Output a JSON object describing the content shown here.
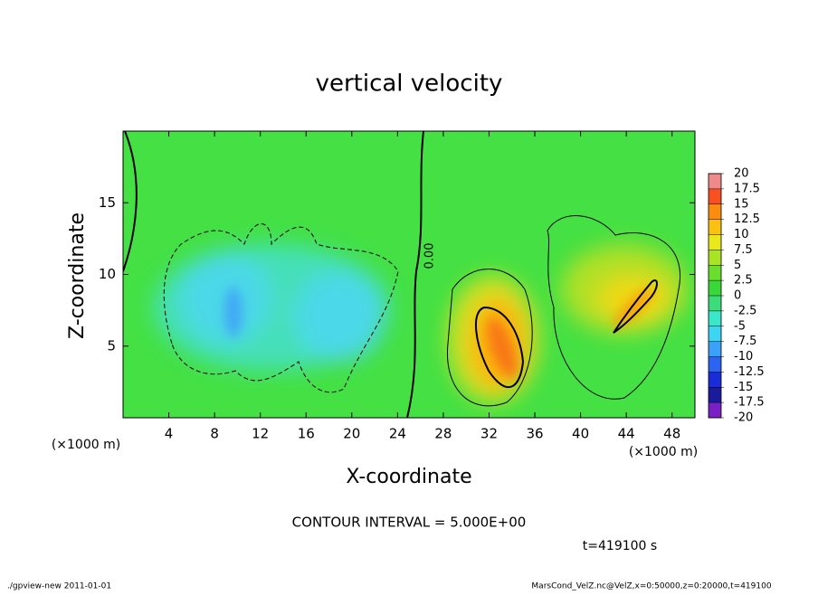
{
  "chart_data": {
    "type": "contour",
    "title": "vertical velocity",
    "x_label": "X-coordinate",
    "y_label": "Z-coordinate",
    "x_unit": "(×1000 m)",
    "xlim": [
      0,
      50
    ],
    "xticks": [
      4,
      8,
      12,
      16,
      20,
      24,
      28,
      32,
      36,
      40,
      44,
      48
    ],
    "ylim": [
      0,
      20
    ],
    "yticks": [
      5,
      10,
      15
    ],
    "contour_label": "0.00",
    "contour_interval": "CONTOUR INTERVAL = 5.000E+00",
    "time": "t=419100 s",
    "colorbar": {
      "levels": [
        -20,
        -17.5,
        -15,
        -12.5,
        -10,
        -7.5,
        -5,
        -2.5,
        0,
        2.5,
        5,
        7.5,
        10,
        12.5,
        15,
        17.5,
        20
      ],
      "colors": [
        "#7a1fc4",
        "#1a1a9c",
        "#1a2cd8",
        "#2a64f0",
        "#3aa0f8",
        "#3cd6f4",
        "#3ce6c8",
        "#3cdc7a",
        "#38d838",
        "#6ade2c",
        "#a8e424",
        "#e8e81c",
        "#fcc010",
        "#fc8c10",
        "#f85020",
        "#f08a8a"
      ]
    },
    "footer_left": "./gpview-new   2011-01-01",
    "footer_right": "MarsCond_VelZ.nc@VelZ,x=0:50000,z=0:20000,t=419100"
  }
}
